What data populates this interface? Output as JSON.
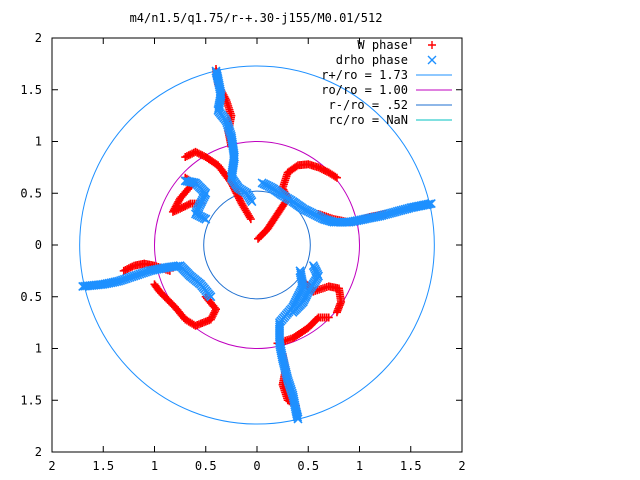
{
  "chart_data": {
    "type": "scatter",
    "title": "m4/n1.5/q1.75/r-+.30-j155/M0.01/512",
    "xlim": [
      -2,
      2
    ],
    "ylim": [
      -2,
      2
    ],
    "x_ticks": [
      {
        "value": -2,
        "label": "2"
      },
      {
        "value": -1.5,
        "label": "1.5"
      },
      {
        "value": -1,
        "label": "1"
      },
      {
        "value": -0.5,
        "label": "0.5"
      },
      {
        "value": 0,
        "label": "0"
      },
      {
        "value": 0.5,
        "label": "0.5"
      },
      {
        "value": 1,
        "label": "1"
      },
      {
        "value": 1.5,
        "label": "1.5"
      },
      {
        "value": 2,
        "label": "2"
      }
    ],
    "y_ticks": [
      {
        "value": 2,
        "label": "2"
      },
      {
        "value": 1.5,
        "label": "1.5"
      },
      {
        "value": 1,
        "label": "1"
      },
      {
        "value": 0.5,
        "label": "0.5"
      },
      {
        "value": 0,
        "label": "0"
      },
      {
        "value": -0.5,
        "label": "0.5"
      },
      {
        "value": -1,
        "label": "1"
      },
      {
        "value": -1.5,
        "label": "1.5"
      },
      {
        "value": -2,
        "label": "2"
      }
    ],
    "legend_position": "top-right",
    "grid": false,
    "series": [
      {
        "name": "W phase",
        "kind": "points",
        "marker": "plus",
        "color": "#ff0000",
        "arms": [
          [
            [
              0.01,
              0.06
            ],
            [
              0.1,
              0.15
            ],
            [
              0.2,
              0.3
            ],
            [
              0.3,
              0.45
            ],
            [
              0.25,
              0.55
            ],
            [
              0.3,
              0.7
            ],
            [
              0.4,
              0.77
            ],
            [
              0.5,
              0.78
            ],
            [
              0.6,
              0.75
            ],
            [
              0.7,
              0.7
            ],
            [
              0.78,
              0.65
            ]
          ],
          [
            [
              0.6,
              0.3
            ],
            [
              0.75,
              0.25
            ],
            [
              0.9,
              0.22
            ],
            [
              1.0,
              0.24
            ],
            [
              1.1,
              0.27
            ],
            [
              1.25,
              0.3
            ]
          ],
          [
            [
              -0.06,
              0.25
            ],
            [
              -0.15,
              0.4
            ],
            [
              -0.25,
              0.6
            ],
            [
              -0.38,
              0.77
            ],
            [
              -0.5,
              0.85
            ],
            [
              -0.6,
              0.9
            ],
            [
              -0.7,
              0.85
            ]
          ],
          [
            [
              -0.25,
              0.95
            ],
            [
              -0.28,
              1.1
            ],
            [
              -0.25,
              1.25
            ],
            [
              -0.3,
              1.4
            ],
            [
              -0.38,
              1.55
            ],
            [
              -0.4,
              1.7
            ]
          ],
          [
            [
              -0.55,
              0.4
            ],
            [
              -0.65,
              0.4
            ],
            [
              -0.75,
              0.35
            ],
            [
              -0.82,
              0.32
            ],
            [
              -0.75,
              0.45
            ],
            [
              -0.62,
              0.6
            ],
            [
              -0.7,
              0.65
            ]
          ],
          [
            [
              -0.85,
              -0.25
            ],
            [
              -1.0,
              -0.2
            ],
            [
              -1.1,
              -0.18
            ],
            [
              -1.2,
              -0.2
            ],
            [
              -1.3,
              -0.25
            ]
          ],
          [
            [
              -0.5,
              -0.5
            ],
            [
              -0.4,
              -0.62
            ],
            [
              -0.45,
              -0.72
            ],
            [
              -0.6,
              -0.78
            ],
            [
              -0.7,
              -0.72
            ],
            [
              -0.8,
              -0.6
            ],
            [
              -0.95,
              -0.45
            ],
            [
              -1.0,
              -0.38
            ]
          ],
          [
            [
              0.45,
              -0.35
            ],
            [
              0.55,
              -0.45
            ],
            [
              0.7,
              -0.4
            ],
            [
              0.8,
              -0.42
            ],
            [
              0.82,
              -0.55
            ],
            [
              0.78,
              -0.65
            ]
          ],
          [
            [
              0.2,
              -0.95
            ],
            [
              0.35,
              -0.9
            ],
            [
              0.5,
              -0.8
            ],
            [
              0.6,
              -0.7
            ],
            [
              0.7,
              -0.7
            ]
          ],
          [
            [
              0.25,
              -1.05
            ],
            [
              0.28,
              -1.2
            ],
            [
              0.25,
              -1.35
            ],
            [
              0.3,
              -1.5
            ],
            [
              0.38,
              -1.55
            ]
          ]
        ]
      },
      {
        "name": "drho phase",
        "kind": "points",
        "marker": "cross",
        "color": "#1e90ff",
        "arms": [
          [
            [
              0.05,
              0.6
            ],
            [
              0.15,
              0.55
            ],
            [
              0.25,
              0.48
            ],
            [
              0.35,
              0.42
            ],
            [
              0.45,
              0.35
            ],
            [
              0.55,
              0.3
            ],
            [
              0.65,
              0.25
            ],
            [
              0.75,
              0.22
            ],
            [
              0.9,
              0.22
            ],
            [
              1.05,
              0.25
            ],
            [
              1.2,
              0.28
            ],
            [
              1.35,
              0.32
            ],
            [
              1.5,
              0.36
            ],
            [
              1.6,
              0.38
            ],
            [
              1.7,
              0.4
            ]
          ],
          [
            [
              -0.05,
              0.42
            ],
            [
              -0.1,
              0.5
            ],
            [
              -0.18,
              0.55
            ],
            [
              -0.25,
              0.65
            ],
            [
              -0.22,
              0.85
            ],
            [
              -0.25,
              1.05
            ],
            [
              -0.3,
              1.2
            ],
            [
              -0.38,
              1.3
            ],
            [
              -0.35,
              1.45
            ],
            [
              -0.38,
              1.6
            ],
            [
              -0.4,
              1.68
            ]
          ],
          [
            [
              -0.5,
              0.25
            ],
            [
              -0.6,
              0.3
            ],
            [
              -0.55,
              0.4
            ],
            [
              -0.5,
              0.5
            ],
            [
              -0.6,
              0.6
            ],
            [
              -0.7,
              0.62
            ]
          ],
          [
            [
              -0.45,
              -0.5
            ],
            [
              -0.55,
              -0.38
            ],
            [
              -0.65,
              -0.3
            ],
            [
              -0.75,
              -0.2
            ],
            [
              -0.9,
              -0.22
            ],
            [
              -1.05,
              -0.25
            ],
            [
              -1.2,
              -0.3
            ],
            [
              -1.35,
              -0.35
            ],
            [
              -1.5,
              -0.38
            ],
            [
              -1.7,
              -0.4
            ]
          ],
          [
            [
              0.42,
              -0.25
            ],
            [
              0.45,
              -0.4
            ],
            [
              0.4,
              -0.5
            ],
            [
              0.35,
              -0.6
            ],
            [
              0.22,
              -0.75
            ],
            [
              0.22,
              -0.95
            ],
            [
              0.25,
              -1.1
            ],
            [
              0.3,
              -1.3
            ],
            [
              0.35,
              -1.45
            ],
            [
              0.38,
              -1.6
            ],
            [
              0.4,
              -1.68
            ]
          ],
          [
            [
              0.55,
              -0.2
            ],
            [
              0.6,
              -0.3
            ],
            [
              0.5,
              -0.45
            ],
            [
              0.45,
              -0.55
            ],
            [
              0.35,
              -0.65
            ]
          ]
        ]
      },
      {
        "name": "r+/ro = 1.73",
        "kind": "circle",
        "radius": 1.73,
        "color": "#1e90ff"
      },
      {
        "name": "ro/ro = 1.00",
        "kind": "circle",
        "radius": 1.0,
        "color": "#bf00bf"
      },
      {
        "name": "r-/ro = .52",
        "kind": "circle",
        "radius": 0.52,
        "color": "#1e6fd0"
      },
      {
        "name": "rc/ro = NaN",
        "kind": "circle",
        "radius": null,
        "color": "#00c0c0"
      }
    ]
  }
}
